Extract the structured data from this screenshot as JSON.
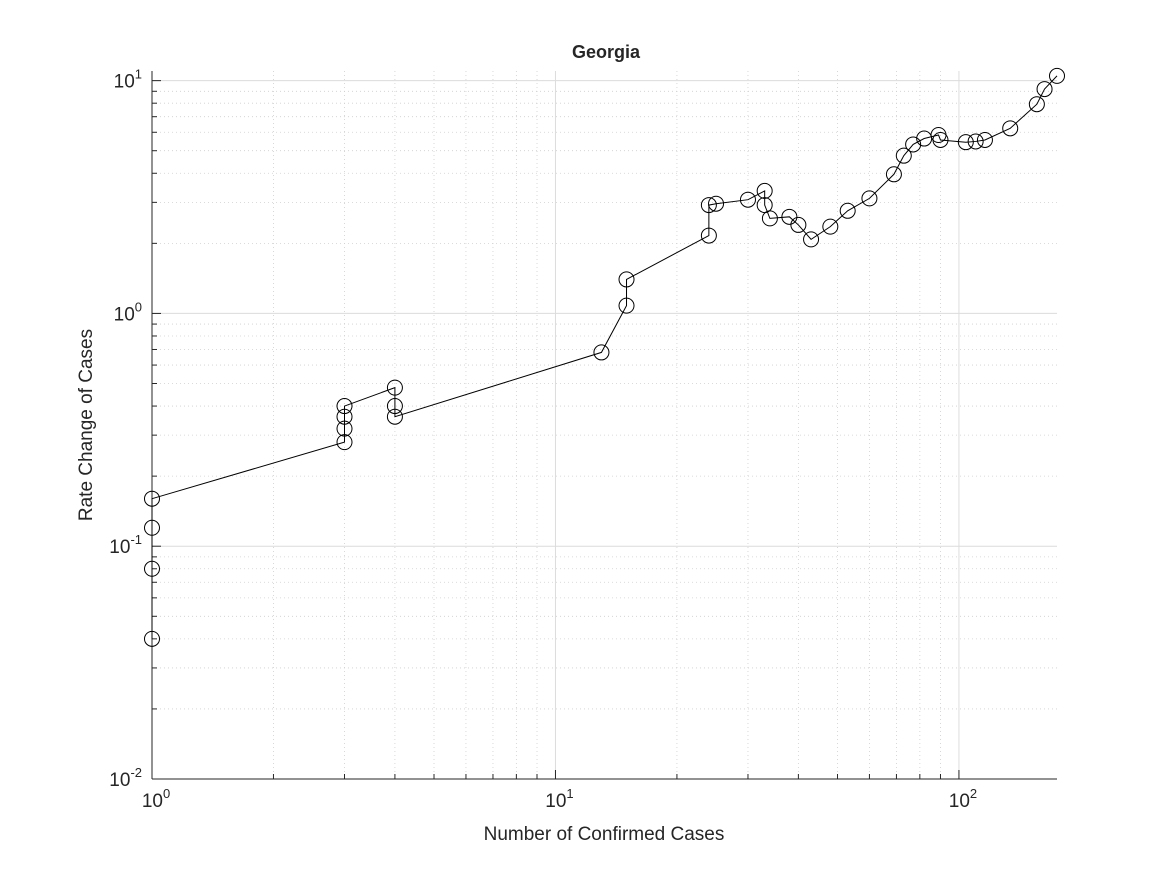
{
  "chart_data": {
    "type": "line",
    "title": "Georgia",
    "xlabel": "Number of Confirmed Cases",
    "ylabel": "Rate Change of Cases",
    "xscale": "log",
    "yscale": "log",
    "xlim": [
      1,
      175
    ],
    "ylim": [
      0.01,
      11
    ],
    "grid": true,
    "minor_grid": true,
    "marker": "circle",
    "line_color": "#000000",
    "x_ticks": [
      {
        "base": "10",
        "exp": "0",
        "value": 1
      },
      {
        "base": "10",
        "exp": "1",
        "value": 10
      },
      {
        "base": "10",
        "exp": "2",
        "value": 100
      }
    ],
    "y_ticks": [
      {
        "base": "10",
        "exp": "-2",
        "value": 0.01
      },
      {
        "base": "10",
        "exp": "-1",
        "value": 0.1
      },
      {
        "base": "10",
        "exp": "0",
        "value": 1
      },
      {
        "base": "10",
        "exp": "1",
        "value": 10
      }
    ],
    "series": [
      {
        "x": [
          1,
          1,
          1,
          1,
          3,
          3,
          3,
          3,
          4,
          4,
          4,
          13,
          15,
          15,
          24,
          24,
          25,
          30,
          33,
          33,
          34,
          38,
          40,
          43,
          48,
          53,
          60,
          69,
          73,
          77,
          82,
          89,
          90,
          104,
          110,
          116,
          134,
          156,
          163,
          175
        ],
        "y": [
          0.04,
          0.08,
          0.12,
          0.16,
          0.28,
          0.32,
          0.36,
          0.4,
          0.48,
          0.4,
          0.36,
          0.68,
          1.08,
          1.4,
          2.16,
          2.92,
          2.96,
          3.08,
          3.36,
          2.92,
          2.56,
          2.6,
          2.4,
          2.08,
          2.36,
          2.76,
          3.12,
          3.96,
          4.76,
          5.32,
          5.64,
          5.84,
          5.56,
          5.44,
          5.48,
          5.56,
          6.24,
          7.92,
          9.2,
          10.48
        ]
      }
    ]
  }
}
